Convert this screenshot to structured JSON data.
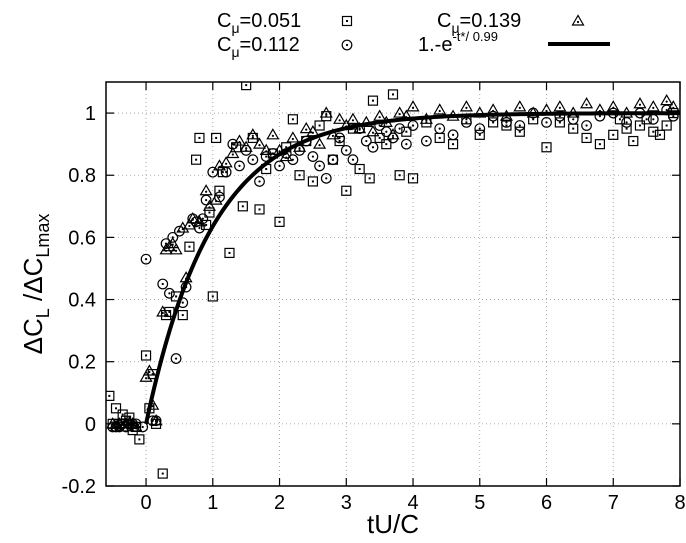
{
  "chart_data": {
    "type": "scatter",
    "xlabel": {
      "text": "tU/C"
    },
    "ylabel": {
      "delta1": "ΔC",
      "sub1": "L",
      "slash": " /",
      "delta2": "ΔC",
      "sub2": "Lmax"
    },
    "xlim": [
      -0.6,
      8
    ],
    "ylim": [
      -0.2,
      1.1
    ],
    "xticks": [
      0,
      1,
      2,
      3,
      4,
      5,
      6,
      7,
      8
    ],
    "yticks": [
      -0.2,
      0,
      0.2,
      0.4,
      0.6,
      0.8,
      1
    ],
    "xtick_labels": [
      "0",
      "1",
      "2",
      "3",
      "4",
      "5",
      "6",
      "7",
      "8"
    ],
    "ytick_labels": [
      "-0.2",
      "0",
      "0.2",
      "0.4",
      "0.6",
      "0.8",
      "1"
    ],
    "grid": true,
    "legend_position": "top, above plot",
    "series": [
      {
        "name": "C_μ=0.051",
        "legend": {
          "base": "C",
          "sub": "μ",
          "rest": "=0.051"
        },
        "marker": "square-dot",
        "points": [
          [
            -0.55,
            0.09
          ],
          [
            -0.5,
            0.0
          ],
          [
            -0.45,
            0.05
          ],
          [
            -0.4,
            0.0
          ],
          [
            -0.35,
            0.03
          ],
          [
            -0.3,
            0.01
          ],
          [
            -0.25,
            0.02
          ],
          [
            -0.2,
            -0.02
          ],
          [
            -0.15,
            -0.01
          ],
          [
            -0.1,
            -0.05
          ],
          [
            0.0,
            0.22
          ],
          [
            0.05,
            0.05
          ],
          [
            0.1,
            0.16
          ],
          [
            0.15,
            0.0
          ],
          [
            0.25,
            -0.16
          ],
          [
            0.3,
            0.35
          ],
          [
            0.35,
            0.36
          ],
          [
            0.45,
            0.41
          ],
          [
            0.55,
            0.35
          ],
          [
            0.65,
            0.57
          ],
          [
            0.75,
            0.85
          ],
          [
            0.8,
            0.92
          ],
          [
            0.9,
            0.64
          ],
          [
            0.95,
            0.68
          ],
          [
            1.0,
            0.41
          ],
          [
            1.05,
            0.92
          ],
          [
            1.1,
            0.75
          ],
          [
            1.15,
            0.81
          ],
          [
            1.25,
            0.55
          ],
          [
            1.35,
            0.89
          ],
          [
            1.45,
            0.7
          ],
          [
            1.5,
            1.09
          ],
          [
            1.6,
            0.92
          ],
          [
            1.7,
            0.69
          ],
          [
            1.8,
            0.82
          ],
          [
            1.9,
            0.87
          ],
          [
            2.0,
            0.65
          ],
          [
            2.1,
            0.89
          ],
          [
            2.2,
            0.98
          ],
          [
            2.3,
            0.8
          ],
          [
            2.4,
            0.91
          ],
          [
            2.5,
            0.78
          ],
          [
            2.6,
            0.96
          ],
          [
            2.7,
            0.99
          ],
          [
            2.8,
            0.85
          ],
          [
            2.9,
            0.91
          ],
          [
            3.0,
            0.75
          ],
          [
            3.1,
            0.95
          ],
          [
            3.2,
            0.82
          ],
          [
            3.35,
            0.79
          ],
          [
            3.4,
            1.04
          ],
          [
            3.5,
            0.92
          ],
          [
            3.6,
            0.9
          ],
          [
            3.7,
            1.06
          ],
          [
            3.8,
            0.8
          ],
          [
            3.9,
            0.94
          ],
          [
            4.0,
            0.79
          ],
          [
            4.2,
            0.97
          ],
          [
            4.4,
            0.92
          ],
          [
            4.6,
            0.9
          ],
          [
            4.8,
            0.98
          ],
          [
            5.0,
            0.93
          ],
          [
            5.2,
            0.97
          ],
          [
            5.4,
            0.96
          ],
          [
            5.6,
            0.94
          ],
          [
            5.8,
            0.98
          ],
          [
            6.0,
            0.89
          ],
          [
            6.2,
            0.97
          ],
          [
            6.4,
            0.95
          ],
          [
            6.6,
            0.92
          ],
          [
            6.8,
            0.9
          ],
          [
            7.0,
            0.93
          ],
          [
            7.1,
            0.98
          ],
          [
            7.2,
            0.95
          ],
          [
            7.3,
            0.91
          ],
          [
            7.4,
            0.96
          ],
          [
            7.5,
            0.98
          ],
          [
            7.6,
            0.94
          ],
          [
            7.7,
            0.93
          ],
          [
            7.8,
            0.96
          ],
          [
            7.9,
            1.0
          ]
        ]
      },
      {
        "name": "C_μ=0.112",
        "legend": {
          "base": "C",
          "sub": "μ",
          "rest": "=0.112"
        },
        "marker": "circle-dot",
        "points": [
          [
            -0.5,
            -0.01
          ],
          [
            -0.45,
            -0.01
          ],
          [
            -0.4,
            -0.01
          ],
          [
            -0.35,
            0.0
          ],
          [
            -0.3,
            -0.01
          ],
          [
            -0.25,
            0.0
          ],
          [
            -0.2,
            0.0
          ],
          [
            -0.15,
            0.0
          ],
          [
            -0.05,
            -0.01
          ],
          [
            0.0,
            0.53
          ],
          [
            0.1,
            0.01
          ],
          [
            0.15,
            0.01
          ],
          [
            0.25,
            0.45
          ],
          [
            0.3,
            0.58
          ],
          [
            0.35,
            0.42
          ],
          [
            0.4,
            0.6
          ],
          [
            0.45,
            0.21
          ],
          [
            0.5,
            0.62
          ],
          [
            0.55,
            0.39
          ],
          [
            0.6,
            0.44
          ],
          [
            0.7,
            0.66
          ],
          [
            0.75,
            0.65
          ],
          [
            0.8,
            0.63
          ],
          [
            0.85,
            0.66
          ],
          [
            0.9,
            0.72
          ],
          [
            1.0,
            0.81
          ],
          [
            1.1,
            0.73
          ],
          [
            1.2,
            0.81
          ],
          [
            1.3,
            0.9
          ],
          [
            1.4,
            0.83
          ],
          [
            1.5,
            0.88
          ],
          [
            1.6,
            0.85
          ],
          [
            1.7,
            0.78
          ],
          [
            1.8,
            0.86
          ],
          [
            1.9,
            0.87
          ],
          [
            2.0,
            0.83
          ],
          [
            2.1,
            0.87
          ],
          [
            2.2,
            0.85
          ],
          [
            2.3,
            0.88
          ],
          [
            2.4,
            0.91
          ],
          [
            2.5,
            0.86
          ],
          [
            2.6,
            0.83
          ],
          [
            2.7,
            0.79
          ],
          [
            2.8,
            0.85
          ],
          [
            2.9,
            0.92
          ],
          [
            3.0,
            0.88
          ],
          [
            3.1,
            0.85
          ],
          [
            3.2,
            0.95
          ],
          [
            3.3,
            0.91
          ],
          [
            3.4,
            0.89
          ],
          [
            3.5,
            0.96
          ],
          [
            3.6,
            0.94
          ],
          [
            3.7,
            0.92
          ],
          [
            3.8,
            0.95
          ],
          [
            3.9,
            0.9
          ],
          [
            4.0,
            0.96
          ],
          [
            4.2,
            0.91
          ],
          [
            4.4,
            0.95
          ],
          [
            4.6,
            0.93
          ],
          [
            4.8,
            0.97
          ],
          [
            5.0,
            0.95
          ],
          [
            5.2,
            0.99
          ],
          [
            5.4,
            0.97
          ],
          [
            5.6,
            0.96
          ],
          [
            5.8,
            1.0
          ],
          [
            6.0,
            0.97
          ],
          [
            6.2,
            0.99
          ],
          [
            6.4,
            0.98
          ],
          [
            6.6,
            0.96
          ],
          [
            6.8,
            0.99
          ],
          [
            7.0,
            1.0
          ],
          [
            7.2,
            0.97
          ],
          [
            7.4,
            1.0
          ],
          [
            7.6,
            0.98
          ],
          [
            7.8,
            1.01
          ],
          [
            7.9,
            0.99
          ]
        ]
      },
      {
        "name": "C_μ=0.139",
        "legend": {
          "base": "C",
          "sub": "μ",
          "rest": "=0.139"
        },
        "marker": "triangle-dot",
        "points": [
          [
            -0.5,
            0.0
          ],
          [
            -0.45,
            -0.01
          ],
          [
            -0.4,
            0.0
          ],
          [
            -0.35,
            -0.01
          ],
          [
            -0.3,
            0.0
          ],
          [
            -0.25,
            0.0
          ],
          [
            -0.2,
            0.0
          ],
          [
            -0.15,
            -0.01
          ],
          [
            0.0,
            0.15
          ],
          [
            0.05,
            0.17
          ],
          [
            0.1,
            0.06
          ],
          [
            0.15,
            0.01
          ],
          [
            0.25,
            0.36
          ],
          [
            0.3,
            0.56
          ],
          [
            0.35,
            0.57
          ],
          [
            0.4,
            0.58
          ],
          [
            0.45,
            0.56
          ],
          [
            0.55,
            0.63
          ],
          [
            0.6,
            0.47
          ],
          [
            0.65,
            0.64
          ],
          [
            0.7,
            0.66
          ],
          [
            0.8,
            0.65
          ],
          [
            0.9,
            0.75
          ],
          [
            0.95,
            0.7
          ],
          [
            1.05,
            0.72
          ],
          [
            1.1,
            0.83
          ],
          [
            1.2,
            0.84
          ],
          [
            1.3,
            0.87
          ],
          [
            1.4,
            0.91
          ],
          [
            1.5,
            0.89
          ],
          [
            1.6,
            0.93
          ],
          [
            1.7,
            0.9
          ],
          [
            1.8,
            0.88
          ],
          [
            1.9,
            0.93
          ],
          [
            2.0,
            0.88
          ],
          [
            2.1,
            0.86
          ],
          [
            2.2,
            0.92
          ],
          [
            2.3,
            0.89
          ],
          [
            2.4,
            0.95
          ],
          [
            2.5,
            0.94
          ],
          [
            2.6,
            0.9
          ],
          [
            2.7,
            1.0
          ],
          [
            2.8,
            0.93
          ],
          [
            2.9,
            0.98
          ],
          [
            3.0,
            0.96
          ],
          [
            3.1,
            0.98
          ],
          [
            3.2,
            0.95
          ],
          [
            3.3,
            0.97
          ],
          [
            3.4,
            0.94
          ],
          [
            3.5,
            0.99
          ],
          [
            3.6,
            0.97
          ],
          [
            3.7,
            0.93
          ],
          [
            3.8,
            1.0
          ],
          [
            3.9,
            0.99
          ],
          [
            4.0,
            1.02
          ],
          [
            4.2,
            0.98
          ],
          [
            4.4,
            1.01
          ],
          [
            4.6,
            0.99
          ],
          [
            4.8,
            1.02
          ],
          [
            5.0,
            1.0
          ],
          [
            5.2,
            1.01
          ],
          [
            5.4,
            0.99
          ],
          [
            5.6,
            1.02
          ],
          [
            5.8,
            1.0
          ],
          [
            6.0,
            1.01
          ],
          [
            6.2,
            1.02
          ],
          [
            6.4,
            1.0
          ],
          [
            6.6,
            1.03
          ],
          [
            6.8,
            1.01
          ],
          [
            7.0,
            1.02
          ],
          [
            7.2,
            1.0
          ],
          [
            7.4,
            1.03
          ],
          [
            7.6,
            1.02
          ],
          [
            7.8,
            1.04
          ],
          [
            7.9,
            1.02
          ]
        ]
      },
      {
        "name": "1.-e^-t*/ 0.99",
        "legend": {
          "base": "1.-e",
          "sup": "-t*/ 0.99"
        },
        "type": "line",
        "function": "1 - exp(-t/0.99)",
        "x_start": 0,
        "x_end": 8
      }
    ],
    "colors": {
      "ink": "#000000",
      "grid": "#888888",
      "background": "#ffffff"
    }
  }
}
